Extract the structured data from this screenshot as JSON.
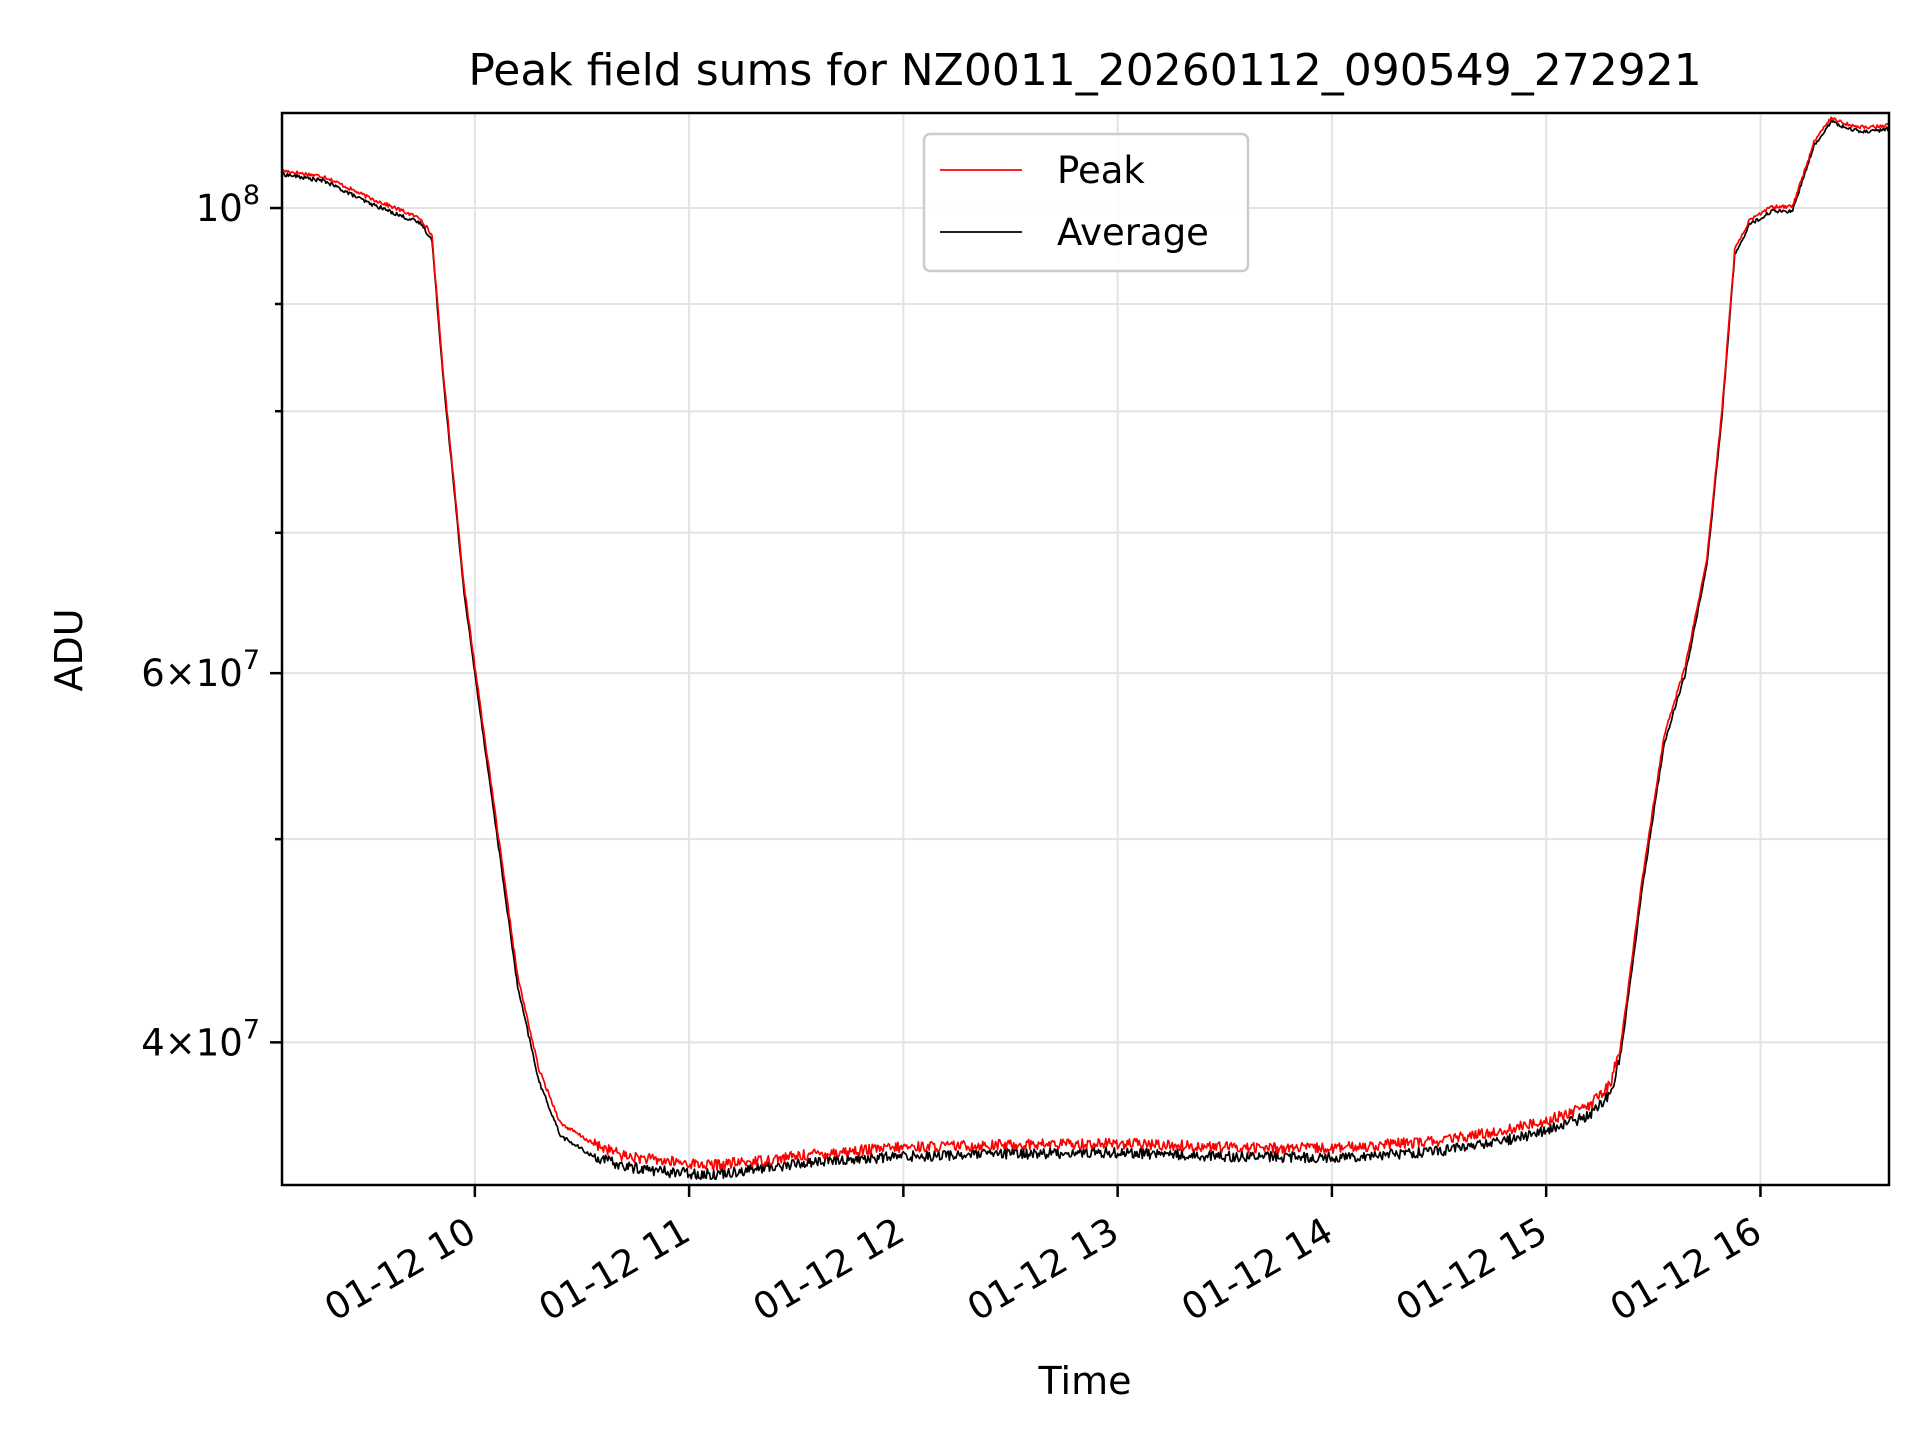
{
  "chart_data": {
    "type": "line",
    "title": "Peak field sums for NZ0011_20260112_090549_272921",
    "xlabel": "Time",
    "ylabel": "ADU",
    "yscale": "log",
    "xlim_hours": [
      9.1,
      16.6
    ],
    "ylim": [
      34200000,
      111000000
    ],
    "x_ticks": [
      {
        "value": 10,
        "label": "01-12 10"
      },
      {
        "value": 11,
        "label": "01-12 11"
      },
      {
        "value": 12,
        "label": "01-12 12"
      },
      {
        "value": 13,
        "label": "01-12 13"
      },
      {
        "value": 14,
        "label": "01-12 14"
      },
      {
        "value": 15,
        "label": "01-12 15"
      },
      {
        "value": 16,
        "label": "01-12 16"
      }
    ],
    "y_ticks_major": [
      {
        "value": 40000000,
        "mantissa": "4",
        "exponent": "7"
      },
      {
        "value": 60000000,
        "mantissa": "6",
        "exponent": "7"
      },
      {
        "value": 100000000,
        "mantissa": "",
        "exponent": "8"
      }
    ],
    "y_ticks_minor": [
      50000000,
      70000000,
      80000000,
      90000000
    ],
    "grid": true,
    "legend_position": "top-center",
    "series": [
      {
        "name": "Peak",
        "color": "#ff0000",
        "hours": [
          9.1,
          9.3,
          9.5,
          9.65,
          9.75,
          9.8,
          9.85,
          9.95,
          10.0,
          10.1,
          10.2,
          10.3,
          10.4,
          10.55,
          10.7,
          10.9,
          11.1,
          11.3,
          11.6,
          12.0,
          12.5,
          13.0,
          13.5,
          14.0,
          14.5,
          14.8,
          15.0,
          15.2,
          15.3,
          15.35,
          15.45,
          15.55,
          15.65,
          15.75,
          15.82,
          15.88,
          15.95,
          16.05,
          16.15,
          16.25,
          16.33,
          16.42,
          16.5,
          16.6
        ],
        "values": [
          104200000,
          103500000,
          101200000,
          99800000,
          98800000,
          97000000,
          84000000,
          66000000,
          60500000,
          51000000,
          43000000,
          38800000,
          36600000,
          35800000,
          35300000,
          35100000,
          34950000,
          35100000,
          35400000,
          35650000,
          35750000,
          35800000,
          35650000,
          35600000,
          35900000,
          36300000,
          36700000,
          37300000,
          38200000,
          40000000,
          48000000,
          56000000,
          60500000,
          68000000,
          80000000,
          95500000,
          98700000,
          100100000,
          100200000,
          107500000,
          110500000,
          109500000,
          109200000,
          109600000
        ]
      },
      {
        "name": "Average",
        "color": "#000000",
        "hours": [
          9.1,
          9.3,
          9.5,
          9.65,
          9.75,
          9.8,
          9.85,
          9.95,
          10.0,
          10.1,
          10.2,
          10.3,
          10.4,
          10.55,
          10.7,
          10.9,
          11.1,
          11.3,
          11.6,
          12.0,
          12.5,
          13.0,
          13.5,
          14.0,
          14.5,
          14.8,
          15.0,
          15.2,
          15.3,
          15.35,
          15.45,
          15.55,
          15.65,
          15.75,
          15.82,
          15.88,
          15.95,
          16.05,
          16.15,
          16.25,
          16.33,
          16.42,
          16.5,
          16.6
        ],
        "values": [
          103800000,
          103000000,
          100600000,
          99200000,
          98300000,
          96500000,
          83500000,
          65500000,
          60000000,
          50500000,
          42500000,
          38300000,
          36100000,
          35300000,
          34900000,
          34700000,
          34600000,
          34800000,
          35100000,
          35300000,
          35400000,
          35450000,
          35300000,
          35250000,
          35500000,
          35900000,
          36300000,
          36900000,
          37800000,
          39600000,
          47500000,
          55500000,
          60000000,
          67500000,
          79500000,
          95000000,
          98200000,
          99600000,
          99700000,
          107000000,
          110000000,
          109000000,
          108700000,
          109100000
        ]
      }
    ]
  }
}
